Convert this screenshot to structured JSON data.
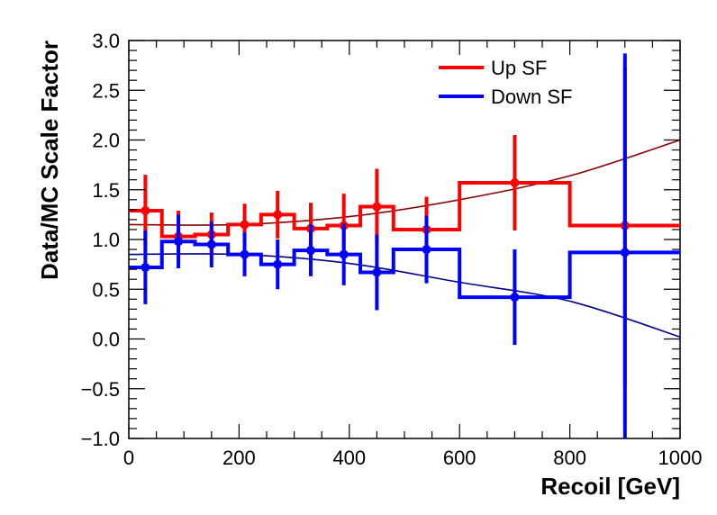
{
  "chart_data": {
    "type": "line",
    "title": "",
    "xlabel": "Recoil [GeV]",
    "ylabel": "Data/MC Scale Factor",
    "xlim": [
      0,
      1000
    ],
    "ylim": [
      -1.0,
      3.0
    ],
    "grid": false,
    "legend_position": "top-right",
    "x_tick_labels": [
      "0",
      "200",
      "400",
      "600",
      "800",
      "1000"
    ],
    "y_tick_labels": [
      "−1.0",
      "−0.5",
      "0.0",
      "0.5",
      "1.0",
      "1.5",
      "2.0",
      "2.5",
      "3.0"
    ],
    "bin_edges": [
      0,
      60,
      120,
      180,
      240,
      300,
      360,
      420,
      480,
      600,
      800,
      1000
    ],
    "series": [
      {
        "name": "Up SF",
        "color": "#ff0000",
        "values": [
          1.29,
          1.03,
          1.05,
          1.15,
          1.25,
          1.11,
          1.14,
          1.33,
          1.1,
          1.57,
          1.14
        ],
        "errors": [
          0.36,
          0.26,
          0.22,
          0.21,
          0.24,
          0.26,
          0.32,
          0.38,
          0.33,
          0.48,
          1.6
        ]
      },
      {
        "name": "Down SF",
        "color": "#0000ff",
        "values": [
          0.72,
          0.98,
          0.95,
          0.85,
          0.75,
          0.89,
          0.85,
          0.67,
          0.9,
          0.42,
          0.87
        ],
        "errors": [
          0.37,
          0.27,
          0.23,
          0.22,
          0.25,
          0.26,
          0.31,
          0.38,
          0.34,
          0.48,
          2.0
        ]
      }
    ],
    "fits": [
      {
        "color": "#8b0000",
        "x": [
          0,
          200,
          400,
          600,
          800,
          1000
        ],
        "y": [
          1.15,
          1.15,
          1.23,
          1.4,
          1.64,
          2.0
        ]
      },
      {
        "color": "#00008b",
        "x": [
          0,
          200,
          400,
          600,
          800,
          1000
        ],
        "y": [
          0.85,
          0.85,
          0.76,
          0.57,
          0.38,
          0.02
        ]
      }
    ]
  }
}
